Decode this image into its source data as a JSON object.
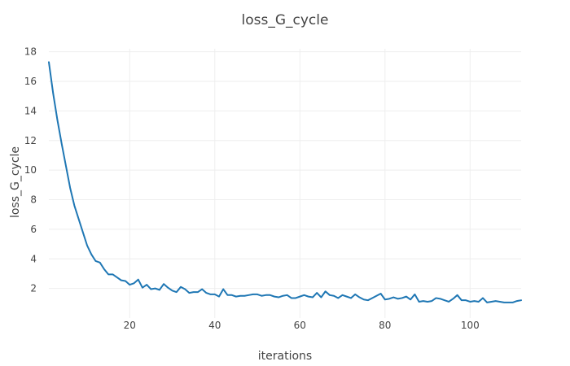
{
  "chart_data": {
    "type": "line",
    "title": "loss_G_cycle",
    "xlabel": "iterations",
    "ylabel": "loss_G_cycle",
    "xlim": [
      1,
      112
    ],
    "ylim": [
      0,
      18.2
    ],
    "x_ticks": [
      20,
      40,
      60,
      80,
      100
    ],
    "y_ticks": [
      2,
      4,
      6,
      8,
      10,
      12,
      14,
      16,
      18
    ],
    "grid": true,
    "legend": "none",
    "colors": {
      "line": "#1f77b4",
      "grid": "#eeeeee",
      "text": "#444444"
    },
    "x": [
      1,
      2,
      3,
      4,
      5,
      6,
      7,
      8,
      9,
      10,
      11,
      12,
      13,
      14,
      15,
      16,
      17,
      18,
      19,
      20,
      21,
      22,
      23,
      24,
      25,
      26,
      27,
      28,
      29,
      30,
      31,
      32,
      33,
      34,
      35,
      36,
      37,
      38,
      39,
      40,
      41,
      42,
      43,
      44,
      45,
      46,
      47,
      48,
      49,
      50,
      51,
      52,
      53,
      54,
      55,
      56,
      57,
      58,
      59,
      60,
      61,
      62,
      63,
      64,
      65,
      66,
      67,
      68,
      69,
      70,
      71,
      72,
      73,
      74,
      75,
      76,
      77,
      78,
      79,
      80,
      81,
      82,
      83,
      84,
      85,
      86,
      87,
      88,
      89,
      90,
      91,
      92,
      93,
      94,
      95,
      96,
      97,
      98,
      99,
      100,
      101,
      102,
      103,
      104,
      105,
      106,
      107,
      108,
      109,
      110,
      111,
      112
    ],
    "series": [
      {
        "values": [
          17.3,
          15.2,
          13.4,
          11.8,
          10.3,
          8.8,
          7.6,
          6.7,
          5.8,
          4.9,
          4.3,
          3.85,
          3.75,
          3.3,
          2.95,
          2.95,
          2.75,
          2.55,
          2.5,
          2.25,
          2.35,
          2.6,
          2.05,
          2.25,
          1.95,
          2.0,
          1.9,
          2.3,
          2.05,
          1.85,
          1.75,
          2.1,
          1.95,
          1.7,
          1.75,
          1.75,
          1.95,
          1.7,
          1.6,
          1.6,
          1.45,
          1.95,
          1.55,
          1.55,
          1.45,
          1.5,
          1.5,
          1.55,
          1.6,
          1.6,
          1.5,
          1.55,
          1.55,
          1.45,
          1.4,
          1.5,
          1.55,
          1.35,
          1.35,
          1.45,
          1.55,
          1.45,
          1.4,
          1.7,
          1.4,
          1.8,
          1.55,
          1.5,
          1.35,
          1.55,
          1.45,
          1.35,
          1.6,
          1.4,
          1.25,
          1.2,
          1.35,
          1.5,
          1.65,
          1.25,
          1.3,
          1.4,
          1.3,
          1.35,
          1.45,
          1.25,
          1.6,
          1.1,
          1.15,
          1.1,
          1.15,
          1.35,
          1.3,
          1.2,
          1.1,
          1.3,
          1.55,
          1.2,
          1.2,
          1.1,
          1.15,
          1.1,
          1.35,
          1.05,
          1.1,
          1.15,
          1.1,
          1.05,
          1.05,
          1.05,
          1.15,
          1.2
        ]
      }
    ]
  }
}
